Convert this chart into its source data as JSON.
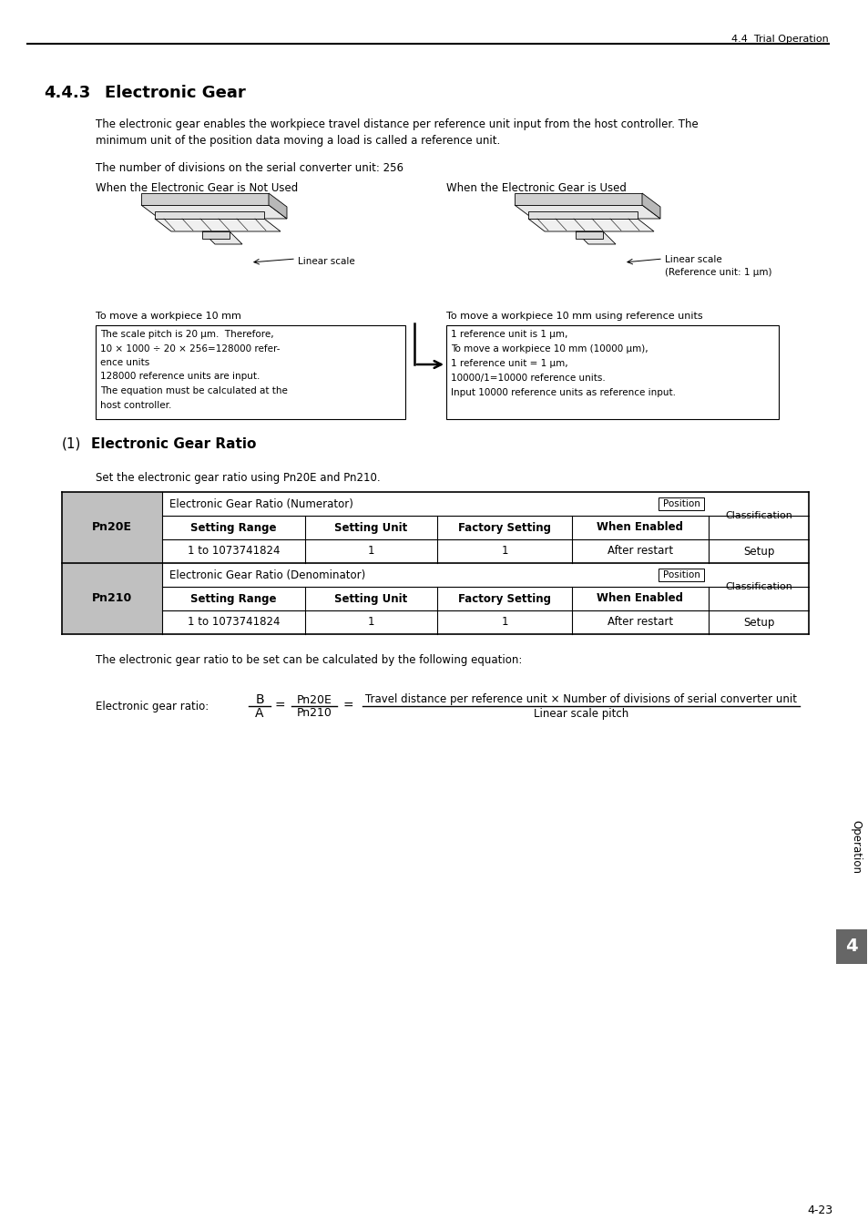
{
  "header_text": "4.4  Trial Operation",
  "section_number": "4.4.3",
  "section_title": "Electronic Gear",
  "para1": "The electronic gear enables the workpiece travel distance per reference unit input from the host controller. The",
  "para1b": "minimum unit of the position data moving a load is called a reference unit.",
  "para2": "The number of divisions on the serial converter unit: 256",
  "label_not_used": "When the Electronic Gear is Not Used",
  "label_used": "When the Electronic Gear is Used",
  "label_linear_scale": "Linear scale",
  "label_linear_scale_ref": "Linear scale\n(Reference unit: 1 μm)",
  "label_to_move": "To move a workpiece 10 mm",
  "label_to_move_ref": "To move a workpiece 10 mm using reference units",
  "box_left_line1": "The scale pitch is 20 μm.  Therefore,",
  "box_left_line2": "10 × 1000 ÷ 20 × 256=128000 refer-",
  "box_left_line3": "ence units",
  "box_left_line4": "128000 reference units are input.",
  "box_left_line5": "The equation must be calculated at the",
  "box_left_line6": "host controller.",
  "box_right_line1": "1 reference unit is 1 μm,",
  "box_right_line2": "To move a workpiece 10 mm (10000 μm),",
  "box_right_line3": "1 reference unit = 1 μm,",
  "box_right_line4": "10000/1=10000 reference units.",
  "box_right_line5": "Input 10000 reference units as reference input.",
  "sub_section_paren": "(1)",
  "sub_section_title": "Electronic Gear Ratio",
  "set_text": "Set the electronic gear ratio using Pn20E and Pn210.",
  "table_col_headers": [
    "Setting Range",
    "Setting Unit",
    "Factory Setting",
    "When Enabled"
  ],
  "table_pn20e_name_row": "Electronic Gear Ratio (Numerator)",
  "table_pn20e_position": "Position",
  "table_pn20e_class": "Classification",
  "table_pn20e_values": [
    "1 to 1073741824",
    "1",
    "1",
    "After restart"
  ],
  "table_pn20e_setup": "Setup",
  "table_pn210_name_row": "Electronic Gear Ratio (Denominator)",
  "table_pn210_position": "Position",
  "table_pn210_class": "Classification",
  "table_pn210_values": [
    "1 to 1073741824",
    "1",
    "1",
    "After restart"
  ],
  "table_pn210_setup": "Setup",
  "row_label_pn20e": "Pn20E",
  "row_label_pn210": "Pn210",
  "calc_text": "The electronic gear ratio to be set can be calculated by the following equation:",
  "formula_prefix": "Electronic gear ratio: ",
  "formula_B": "B",
  "formula_A": "A",
  "formula_eq1": "=",
  "formula_Pn20E": "Pn20E",
  "formula_Pn210": "Pn210",
  "formula_eq2": "=",
  "formula_numerator": "Travel distance per reference unit × Number of divisions of serial converter unit",
  "formula_denominator": "Linear scale pitch",
  "sidebar_text": "Operation",
  "sidebar_number": "4",
  "page_number": "4-23",
  "bg_color": "#ffffff",
  "sidebar_color": "#666666",
  "gray_cell_color": "#c0c0c0"
}
